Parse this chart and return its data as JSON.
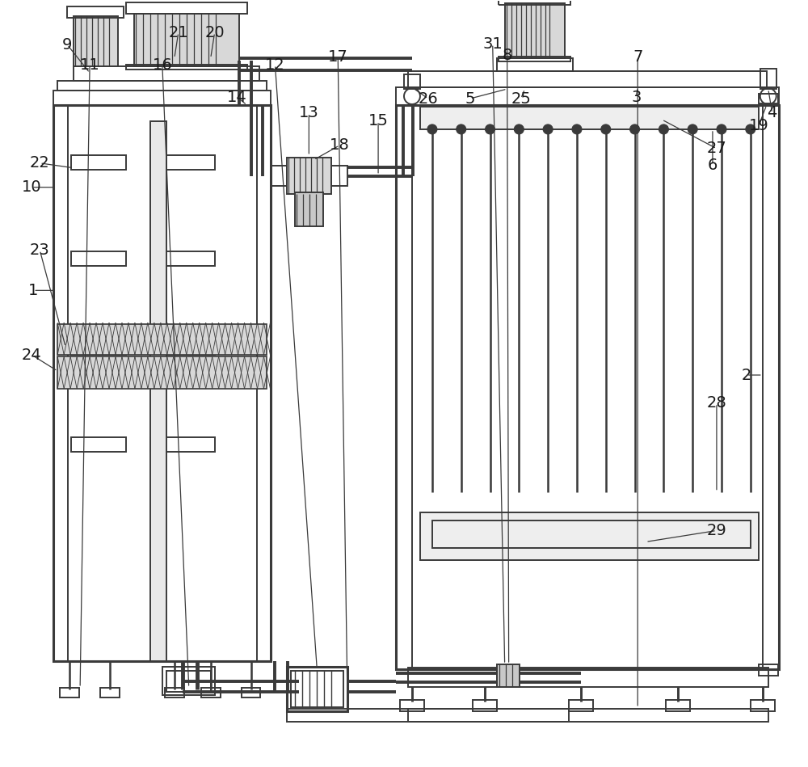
{
  "bg_color": "#ffffff",
  "lc": "#3a3a3a",
  "lw": 1.4,
  "tlw": 2.2
}
